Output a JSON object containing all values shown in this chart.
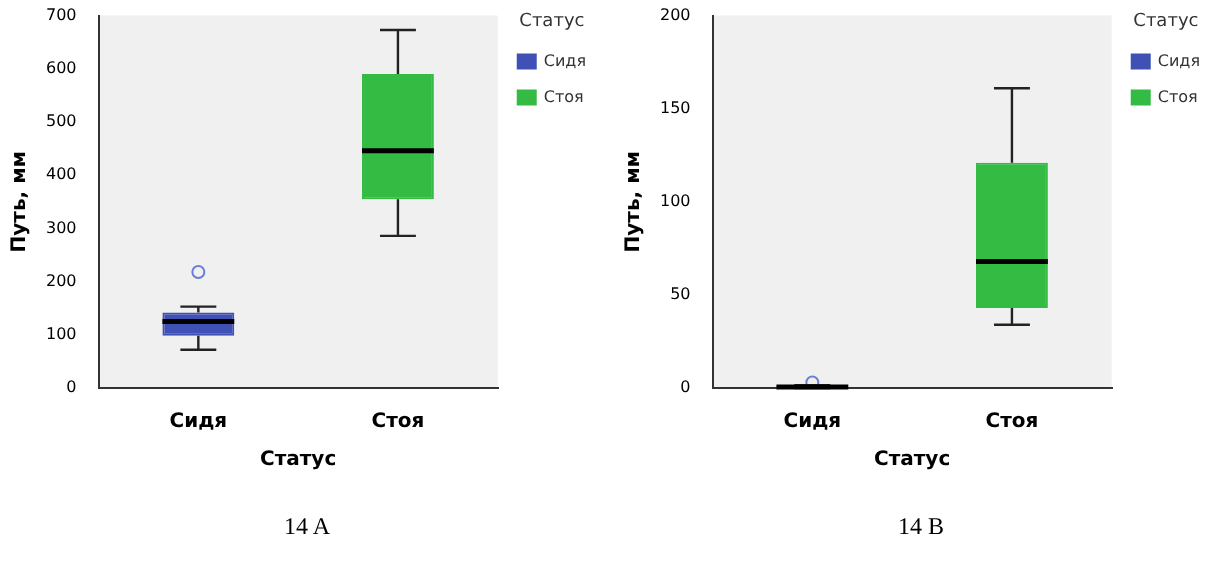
{
  "chart_data": [
    {
      "type": "box",
      "xlabel": "Статус",
      "ylabel": "Путь, мм",
      "categories": [
        "Сидя",
        "Стоя"
      ],
      "ylim": [
        0,
        700
      ],
      "yticks": [
        0,
        100,
        200,
        300,
        400,
        500,
        600,
        700
      ],
      "legend": "right",
      "legend_title": "Статус",
      "annotations": [
        "14 A"
      ],
      "series": [
        {
          "name": "Сидя",
          "color": "#3f51b5",
          "boxes": [
            {
              "low": 72,
              "q1": 98,
              "median": 125,
              "q3": 142,
              "high": 153,
              "outliers": [
                218
              ]
            },
            null
          ]
        },
        {
          "name": "Стоя",
          "color": "#33bb44",
          "boxes": [
            null,
            {
              "low": 286,
              "q1": 355,
              "median": 446,
              "q3": 590,
              "high": 673
            }
          ]
        }
      ]
    },
    {
      "type": "box",
      "xlabel": "Статус",
      "ylabel": "Путь, мм",
      "categories": [
        "Сидя",
        "Стоя"
      ],
      "ylim": [
        0,
        200
      ],
      "yticks": [
        0,
        50,
        100,
        150,
        200
      ],
      "legend": "right",
      "legend_title": "Статус",
      "annotations": [
        "14 B"
      ],
      "series": [
        {
          "name": "Сидя",
          "color": "#3f51b5",
          "boxes": [
            {
              "low": 0,
              "q1": 0,
              "median": 0.5,
              "q3": 1,
              "high": 1.5,
              "outliers": [
                3
              ]
            },
            null
          ]
        },
        {
          "name": "Стоя",
          "color": "#33bb44",
          "boxes": [
            null,
            {
              "low": 34,
              "q1": 43,
              "median": 68,
              "q3": 121,
              "high": 161
            }
          ]
        }
      ]
    }
  ]
}
